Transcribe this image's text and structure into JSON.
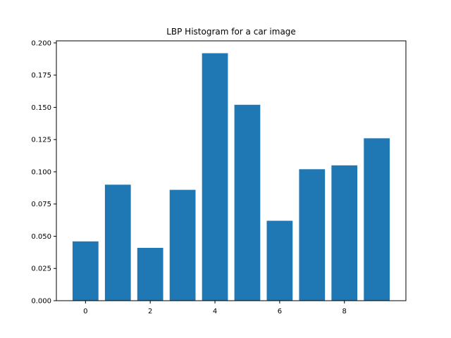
{
  "chart_data": {
    "type": "bar",
    "title": "LBP Histogram for a car image",
    "xlabel": "",
    "ylabel": "",
    "x": [
      0,
      1,
      2,
      3,
      4,
      5,
      6,
      7,
      8,
      9
    ],
    "values": [
      0.046,
      0.09,
      0.041,
      0.086,
      0.192,
      0.152,
      0.062,
      0.102,
      0.105,
      0.126
    ],
    "xlim": [
      -0.9,
      9.9
    ],
    "ylim": [
      0,
      0.2016
    ],
    "xticks": [
      0,
      2,
      4,
      6,
      8
    ],
    "xtick_labels": [
      "0",
      "2",
      "4",
      "6",
      "8"
    ],
    "yticks": [
      0,
      0.025,
      0.05,
      0.075,
      0.1,
      0.125,
      0.15,
      0.175,
      0.2
    ],
    "ytick_labels": [
      "0.000",
      "0.025",
      "0.050",
      "0.075",
      "0.100",
      "0.125",
      "0.150",
      "0.175",
      "0.200"
    ],
    "bar_width": 0.8,
    "bar_color": "#1f77b4",
    "grid": false,
    "legend": "none"
  }
}
